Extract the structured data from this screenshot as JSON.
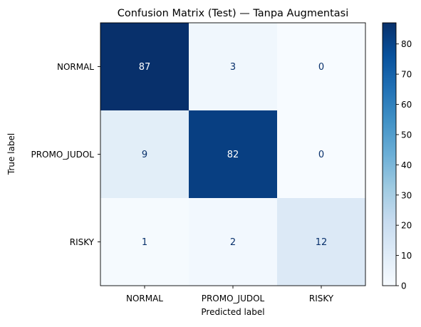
{
  "chart_data": {
    "type": "heatmap",
    "title": "Confusion Matrix (Test) — Tanpa Augmentasi",
    "xlabel": "Predicted label",
    "ylabel": "True label",
    "x_categories": [
      "NORMAL",
      "PROMO_JUDOL",
      "RISKY"
    ],
    "y_categories": [
      "NORMAL",
      "PROMO_JUDOL",
      "RISKY"
    ],
    "values": [
      [
        87,
        3,
        0
      ],
      [
        9,
        82,
        0
      ],
      [
        1,
        2,
        12
      ]
    ],
    "colormap": "Blues",
    "colorbar": {
      "range": [
        0,
        87
      ],
      "ticks": [
        0,
        10,
        20,
        30,
        40,
        50,
        60,
        70,
        80
      ]
    },
    "colors": {
      "low": "#f7fbff",
      "high": "#08306b",
      "text_on_dark": "#ffffff",
      "text_on_light": "#08306b"
    }
  }
}
